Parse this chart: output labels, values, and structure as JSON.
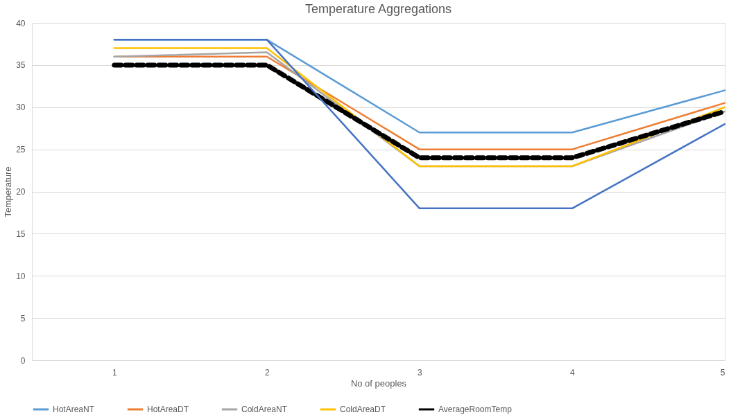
{
  "chart_data": {
    "type": "line",
    "title": "Temperature Aggregations",
    "xlabel": "No of peoples",
    "ylabel": "Temperature",
    "x": [
      1,
      2,
      3,
      4,
      5
    ],
    "series": [
      {
        "name": "HotAreaNT",
        "color": "#5b9bd5",
        "values": [
          38,
          38,
          27,
          27,
          32
        ]
      },
      {
        "name": "HotAreaDT",
        "color": "#ed7d31",
        "values": [
          36,
          36,
          25,
          25,
          30.5
        ]
      },
      {
        "name": "ColdAreaNT",
        "color": "#a5a5a5",
        "values": [
          36,
          36.5,
          23,
          23,
          29.5
        ]
      },
      {
        "name": "ColdAreaDT",
        "color": "#ffc000",
        "values": [
          37,
          37,
          23,
          23,
          30
        ]
      },
      {
        "name": "AverageRoomTemp",
        "color": "#000000",
        "values": [
          35,
          35,
          24,
          24,
          29.5
        ],
        "line_style": "dashed"
      },
      {
        "color": "#4472c4",
        "values": [
          38,
          38,
          18,
          18,
          28
        ]
      }
    ],
    "xlim": [
      0.46,
      5
    ],
    "xticks": [
      1,
      2,
      3,
      4,
      5
    ],
    "ylim": [
      0,
      40
    ],
    "yticks": [
      0,
      5,
      10,
      15,
      20,
      25,
      30,
      35,
      40
    ],
    "grid": "y",
    "legend": "bottom",
    "marker": "none",
    "line_style": "solid"
  }
}
